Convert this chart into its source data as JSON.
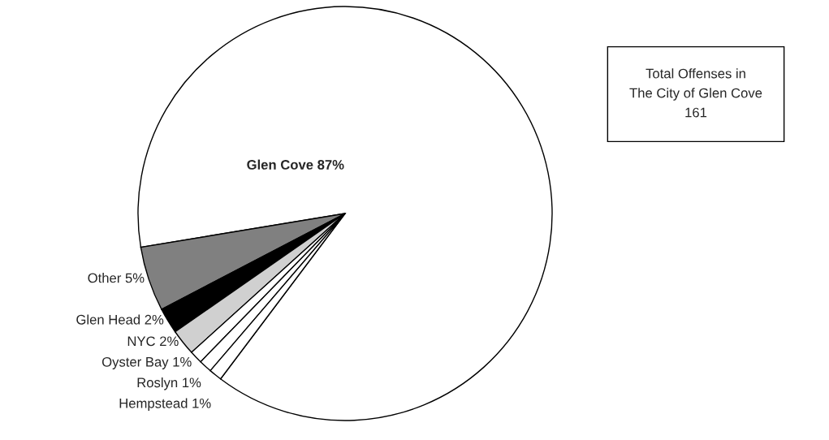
{
  "chart_data": {
    "type": "pie",
    "categories": [
      "Glen Cove",
      "Other",
      "Glen Head",
      "NYC",
      "Oyster Bay",
      "Roslyn",
      "Hempstead"
    ],
    "values": [
      87,
      5,
      2,
      2,
      1,
      1,
      1
    ],
    "value_labels": [
      "87%",
      "5%",
      "2%",
      "2%",
      "1%",
      "1%",
      "1%"
    ],
    "colors": [
      "#ffffff",
      "#808080",
      "#000000",
      "#d0d0d0",
      "#ffffff",
      "#ffffff",
      "#ffffff"
    ],
    "annotations": [
      "Total Offenses in\nThe City of Glen Cove\n161"
    ]
  }
}
